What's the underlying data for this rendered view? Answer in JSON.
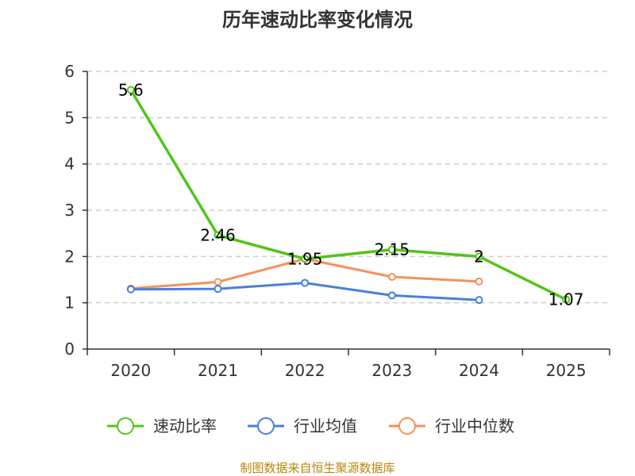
{
  "chart_data": {
    "type": "line",
    "title": "历年速动比率变化情况",
    "categories": [
      "2020",
      "2021",
      "2022",
      "2023",
      "2024",
      "2025"
    ],
    "ylim": [
      0,
      6
    ],
    "yticks": [
      0,
      1,
      2,
      3,
      4,
      5,
      6
    ],
    "grid": true,
    "legend_position": "bottom",
    "series": [
      {
        "name": "速动比率",
        "color": "#52c41a",
        "values": [
          5.6,
          2.46,
          1.95,
          2.15,
          2.0,
          1.07
        ],
        "labels": [
          "5.6",
          "2.46",
          "1.95",
          "2.15",
          "2",
          "1.07"
        ],
        "show_labels": true
      },
      {
        "name": "行业均值",
        "color": "#4a7fdc",
        "values": [
          1.29,
          1.3,
          1.43,
          1.16,
          1.06,
          null
        ],
        "show_labels": false
      },
      {
        "name": "行业中位数",
        "color": "#f5915a",
        "values": [
          1.31,
          1.45,
          1.95,
          1.56,
          1.46,
          null
        ],
        "show_labels": false
      }
    ]
  },
  "footer": {
    "source": "制图数据来自恒生聚源数据库"
  }
}
